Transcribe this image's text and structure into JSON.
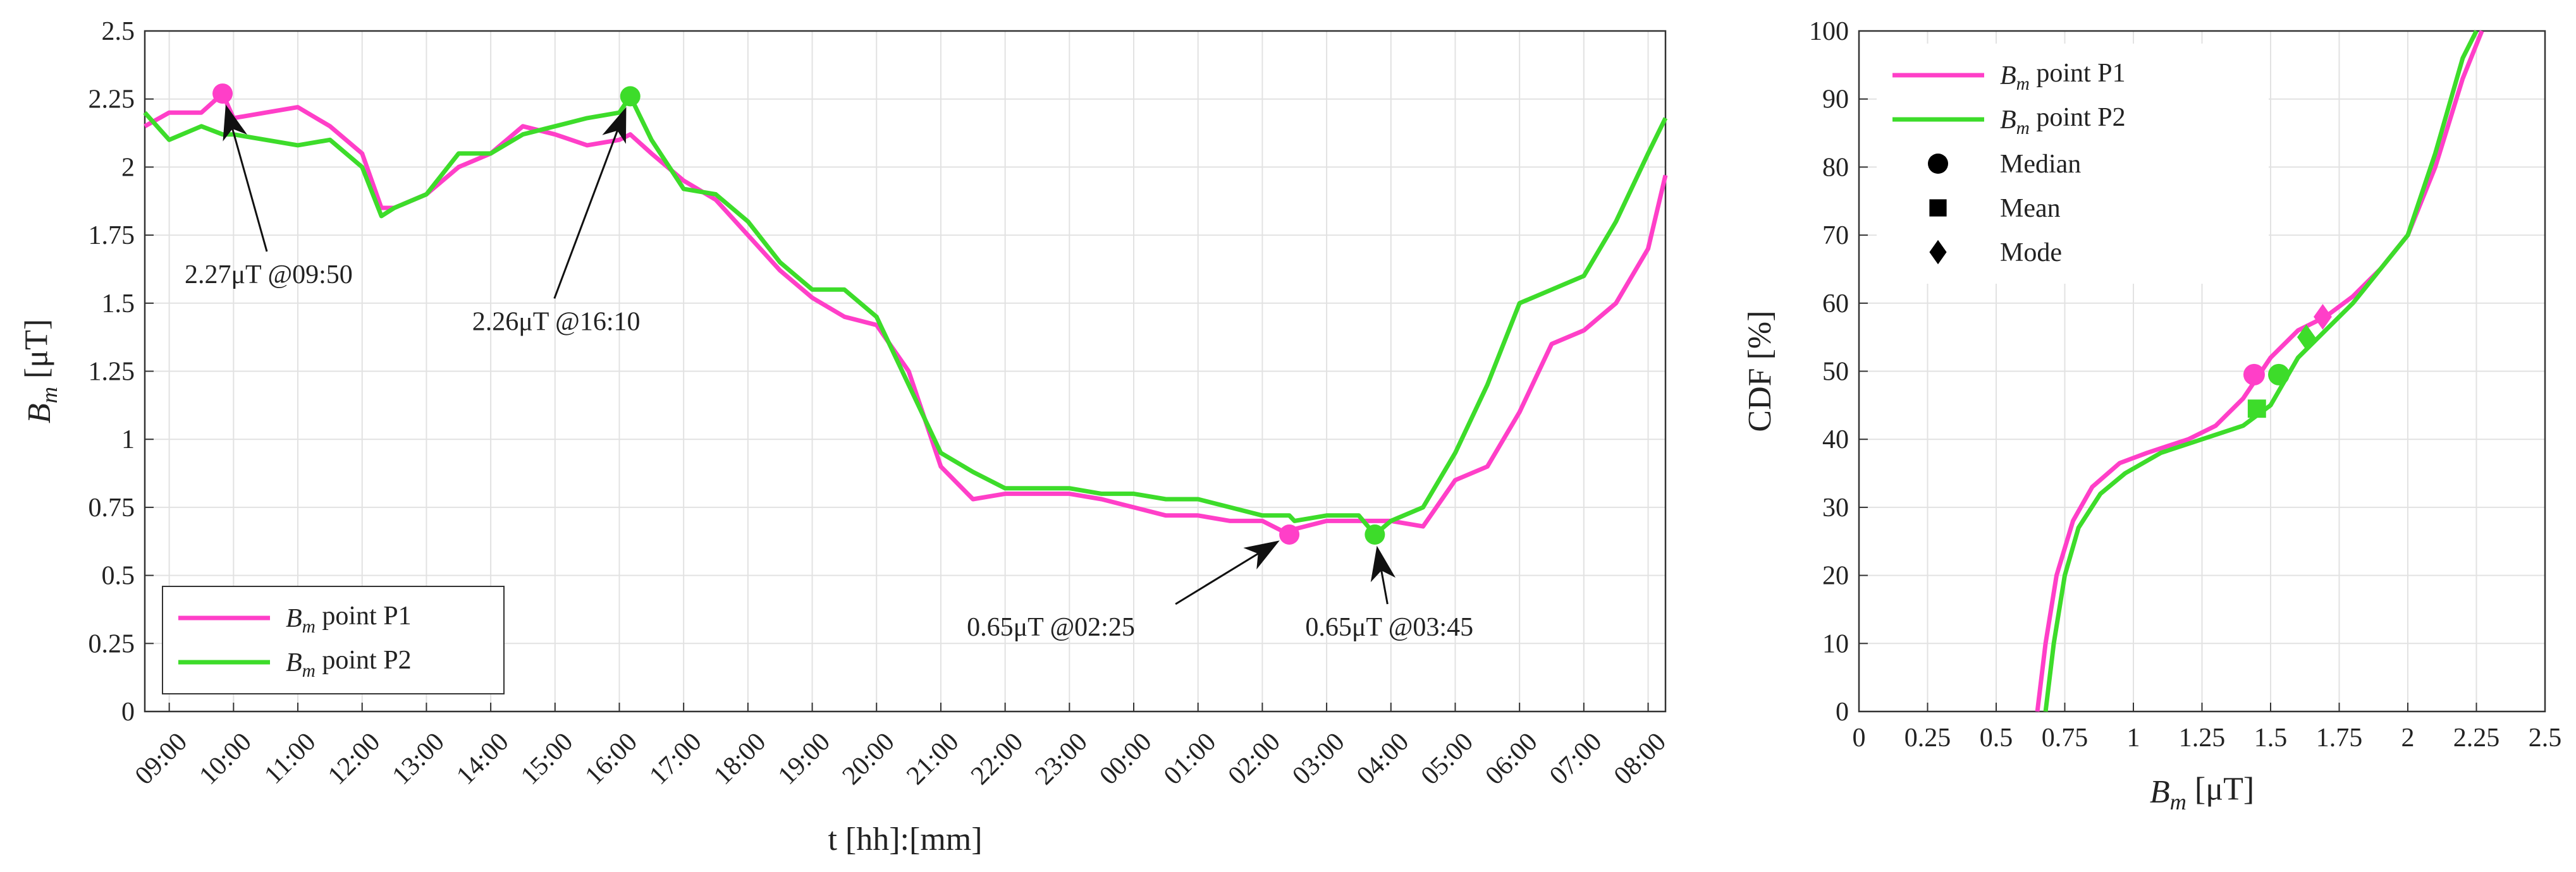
{
  "chart_data": [
    {
      "type": "line",
      "xlabel": "t [hh]:[mm]",
      "ylabel": "Bm [μT]",
      "x": [
        8.62,
        9,
        9.5,
        9.83,
        10,
        10.5,
        11,
        11.5,
        12,
        12.3,
        12.5,
        13,
        13.5,
        14,
        14.5,
        15,
        15.5,
        16,
        16.17,
        16.5,
        17,
        17.5,
        18,
        18.5,
        19,
        19.5,
        20,
        20.5,
        21,
        21.5,
        22,
        22.5,
        23,
        23.5,
        24,
        24.5,
        25,
        25.5,
        26,
        26.42,
        26.5,
        27,
        27.5,
        27.75,
        28,
        28.5,
        29,
        29.5,
        30,
        30.5,
        31,
        31.5,
        32,
        32.27
      ],
      "series": [
        {
          "name": "Bm point P1",
          "color": "#ff3fc8",
          "values": [
            2.15,
            2.2,
            2.2,
            2.27,
            2.18,
            2.2,
            2.22,
            2.15,
            2.05,
            1.85,
            1.85,
            1.9,
            2.0,
            2.05,
            2.15,
            2.12,
            2.08,
            2.1,
            2.12,
            2.05,
            1.95,
            1.88,
            1.75,
            1.62,
            1.52,
            1.45,
            1.42,
            1.25,
            0.9,
            0.78,
            0.8,
            0.8,
            0.8,
            0.78,
            0.75,
            0.72,
            0.72,
            0.7,
            0.7,
            0.65,
            0.67,
            0.7,
            0.7,
            0.7,
            0.7,
            0.68,
            0.85,
            0.9,
            1.1,
            1.35,
            1.4,
            1.5,
            1.7,
            1.97
          ]
        },
        {
          "name": "Bm point P2",
          "color": "#3ddc2a",
          "values": [
            2.2,
            2.1,
            2.15,
            2.12,
            2.12,
            2.1,
            2.08,
            2.1,
            2.0,
            1.82,
            1.85,
            1.9,
            2.05,
            2.05,
            2.12,
            2.15,
            2.18,
            2.2,
            2.26,
            2.1,
            1.92,
            1.9,
            1.8,
            1.65,
            1.55,
            1.55,
            1.45,
            1.2,
            0.95,
            0.88,
            0.82,
            0.82,
            0.82,
            0.8,
            0.8,
            0.78,
            0.78,
            0.75,
            0.72,
            0.72,
            0.7,
            0.72,
            0.72,
            0.65,
            0.7,
            0.75,
            0.95,
            1.2,
            1.5,
            1.55,
            1.6,
            1.8,
            2.05,
            2.18
          ]
        }
      ],
      "annotations": [
        {
          "text": "2.27μT @09:50",
          "x": 9.83,
          "y": 2.27,
          "color": "#ff3fc8"
        },
        {
          "text": "2.26μT @16:10",
          "x": 16.17,
          "y": 2.26,
          "color": "#3ddc2a"
        },
        {
          "text": "0.65μT @02:25",
          "x": 26.42,
          "y": 0.65,
          "color": "#ff3fc8"
        },
        {
          "text": "0.65μT @03:45",
          "x": 27.75,
          "y": 0.65,
          "color": "#3ddc2a"
        }
      ],
      "xlim": [
        8.62,
        32.27
      ],
      "ylim": [
        0,
        2.5
      ],
      "xticks": [
        {
          "value": 9,
          "label": "09:00"
        },
        {
          "value": 10,
          "label": "10:00"
        },
        {
          "value": 11,
          "label": "11:00"
        },
        {
          "value": 12,
          "label": "12:00"
        },
        {
          "value": 13,
          "label": "13:00"
        },
        {
          "value": 14,
          "label": "14:00"
        },
        {
          "value": 15,
          "label": "15:00"
        },
        {
          "value": 16,
          "label": "16:00"
        },
        {
          "value": 17,
          "label": "17:00"
        },
        {
          "value": 18,
          "label": "18:00"
        },
        {
          "value": 19,
          "label": "19:00"
        },
        {
          "value": 20,
          "label": "20:00"
        },
        {
          "value": 21,
          "label": "21:00"
        },
        {
          "value": 22,
          "label": "22:00"
        },
        {
          "value": 23,
          "label": "23:00"
        },
        {
          "value": 24,
          "label": "00:00"
        },
        {
          "value": 25,
          "label": "01:00"
        },
        {
          "value": 26,
          "label": "02:00"
        },
        {
          "value": 27,
          "label": "03:00"
        },
        {
          "value": 28,
          "label": "04:00"
        },
        {
          "value": 29,
          "label": "05:00"
        },
        {
          "value": 30,
          "label": "06:00"
        },
        {
          "value": 31,
          "label": "07:00"
        },
        {
          "value": 32,
          "label": "08:00"
        }
      ],
      "yticks": [
        0,
        0.25,
        0.5,
        0.75,
        1,
        1.25,
        1.5,
        1.75,
        2,
        2.25,
        2.5
      ],
      "grid": true,
      "legend": "lower left"
    },
    {
      "type": "line",
      "xlabel": "Bm [μT]",
      "ylabel": "CDF [%]",
      "series": [
        {
          "name": "Bm point P1",
          "color": "#ff3fc8",
          "x": [
            0.65,
            0.68,
            0.72,
            0.78,
            0.85,
            0.95,
            1.05,
            1.2,
            1.3,
            1.4,
            1.5,
            1.6,
            1.7,
            1.8,
            1.9,
            2.0,
            2.1,
            2.2,
            2.27
          ],
          "values": [
            0,
            10,
            20,
            28,
            33,
            36.5,
            38,
            40,
            42,
            46,
            52,
            56,
            58,
            61,
            65,
            70,
            80,
            93,
            100
          ]
        },
        {
          "name": "Bm point P2",
          "color": "#3ddc2a",
          "x": [
            0.68,
            0.71,
            0.75,
            0.8,
            0.88,
            0.97,
            1.1,
            1.25,
            1.4,
            1.5,
            1.6,
            1.7,
            1.8,
            1.9,
            2.0,
            2.1,
            2.2,
            2.25
          ],
          "values": [
            0,
            10,
            20,
            27,
            32,
            35,
            38,
            40,
            42,
            45,
            52,
            56,
            60,
            65,
            70,
            82,
            96,
            100
          ]
        }
      ],
      "markers": [
        {
          "name": "Median",
          "shape": "circle",
          "points": [
            {
              "x": 1.44,
              "y": 49.5,
              "color": "#ff3fc8"
            },
            {
              "x": 1.53,
              "y": 49.5,
              "color": "#3ddc2a"
            }
          ]
        },
        {
          "name": "Mean",
          "shape": "square",
          "points": [
            {
              "x": 1.45,
              "y": 44.5,
              "color": "#3ddc2a"
            }
          ]
        },
        {
          "name": "Mode",
          "shape": "diamond",
          "points": [
            {
              "x": 1.63,
              "y": 55,
              "color": "#3ddc2a"
            },
            {
              "x": 1.69,
              "y": 58,
              "color": "#ff3fc8"
            }
          ]
        }
      ],
      "xlim": [
        0,
        2.5
      ],
      "ylim": [
        0,
        100
      ],
      "xticks": [
        0,
        0.25,
        0.5,
        0.75,
        1,
        1.25,
        1.5,
        1.75,
        2,
        2.25,
        2.5
      ],
      "yticks": [
        0,
        10,
        20,
        30,
        40,
        50,
        60,
        70,
        80,
        90,
        100
      ],
      "grid": true,
      "legend": "upper left"
    }
  ]
}
